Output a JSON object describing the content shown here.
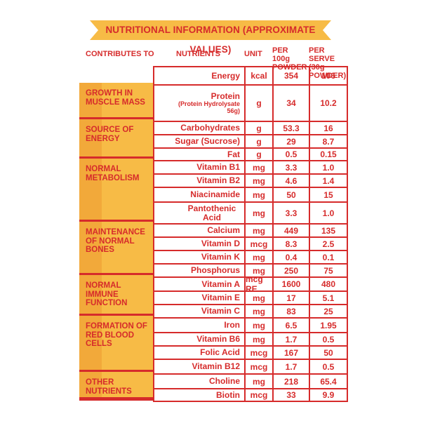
{
  "banner": {
    "title": "NUTRITIONAL INFORMATION (APPROXIMATE VALUES)",
    "color": "#f7bb46"
  },
  "headers": {
    "contributes": "CONTRIBUTES TO",
    "nutrients": "NUTRIENTS",
    "unit": "UNIT",
    "per100": "PER 100g POWDER",
    "perserve": "PER SERVE (30g POWDER)"
  },
  "categories": [
    "GROWTH IN MUSCLE MASS",
    "SOURCE OF ENERGY",
    "NORMAL METABOLISM",
    "MAINTENANCE OF NORMAL BONES",
    "NORMAL IMMUNE FUNCTION",
    "FORMATION OF RED BLOOD CELLS",
    "OTHER NUTRIENTS"
  ],
  "rows": [
    {
      "nutrient": "Energy",
      "sub": "",
      "unit": "kcal",
      "per100": "354",
      "perserve": "106"
    },
    {
      "nutrient": "Protein",
      "sub": "(Protein Hydrolysate 56g)",
      "unit": "g",
      "per100": "34",
      "perserve": "10.2"
    },
    {
      "nutrient": "Carbohydrates",
      "sub": "",
      "unit": "g",
      "per100": "53.3",
      "perserve": "16"
    },
    {
      "nutrient": "Sugar (Sucrose)",
      "sub": "",
      "unit": "g",
      "per100": "29",
      "perserve": "8.7"
    },
    {
      "nutrient": "Fat",
      "sub": "",
      "unit": "g",
      "per100": "0.5",
      "perserve": "0.15"
    },
    {
      "nutrient": "Vitamin B1",
      "sub": "",
      "unit": "mg",
      "per100": "3.3",
      "perserve": "1.0"
    },
    {
      "nutrient": "Vitamin B2",
      "sub": "",
      "unit": "mg",
      "per100": "4.6",
      "perserve": "1.4"
    },
    {
      "nutrient": "Niacinamide",
      "sub": "",
      "unit": "mg",
      "per100": "50",
      "perserve": "15"
    },
    {
      "nutrient": "Pantothenic Acid",
      "sub": "",
      "unit": "mg",
      "per100": "3.3",
      "perserve": "1.0"
    },
    {
      "nutrient": "Calcium",
      "sub": "",
      "unit": "mg",
      "per100": "449",
      "perserve": "135"
    },
    {
      "nutrient": "Vitamin D",
      "sub": "",
      "unit": "mcg",
      "per100": "8.3",
      "perserve": "2.5"
    },
    {
      "nutrient": "Vitamin K",
      "sub": "",
      "unit": "mg",
      "per100": "0.4",
      "perserve": "0.1"
    },
    {
      "nutrient": "Phosphorus",
      "sub": "",
      "unit": "mg",
      "per100": "250",
      "perserve": "75"
    },
    {
      "nutrient": "Vitamin A",
      "sub": "",
      "unit": "mcg RE",
      "per100": "1600",
      "perserve": "480"
    },
    {
      "nutrient": "Vitamin E",
      "sub": "",
      "unit": "mg",
      "per100": "17",
      "perserve": "5.1"
    },
    {
      "nutrient": "Vitamin C",
      "sub": "",
      "unit": "mg",
      "per100": "83",
      "perserve": "25"
    },
    {
      "nutrient": "Iron",
      "sub": "",
      "unit": "mg",
      "per100": "6.5",
      "perserve": "1.95"
    },
    {
      "nutrient": "Vitamin B6",
      "sub": "",
      "unit": "mg",
      "per100": "1.7",
      "perserve": "0.5"
    },
    {
      "nutrient": "Folic Acid",
      "sub": "",
      "unit": "mcg",
      "per100": "167",
      "perserve": "50"
    },
    {
      "nutrient": "Vitamin B12",
      "sub": "",
      "unit": "mcg",
      "per100": "1.7",
      "perserve": "0.5"
    },
    {
      "nutrient": "Choline",
      "sub": "",
      "unit": "mg",
      "per100": "218",
      "perserve": "65.4"
    },
    {
      "nutrient": "Biotin",
      "sub": "",
      "unit": "mcg",
      "per100": "33",
      "perserve": "9.9"
    }
  ]
}
